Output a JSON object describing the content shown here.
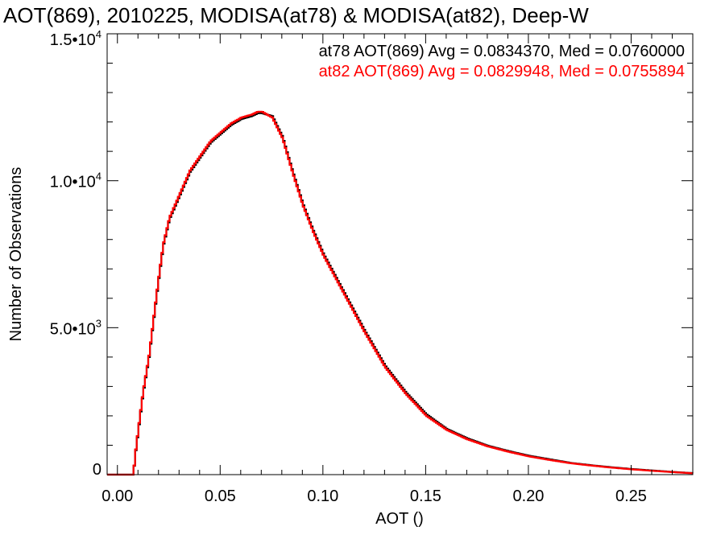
{
  "chart_data": {
    "type": "line",
    "title": "AOT(869), 2010225, MODISA(at78) & MODISA(at82), Deep-W",
    "xlabel": "AOT ()",
    "ylabel": "Number of Observations",
    "xlim": [
      -0.005,
      0.28
    ],
    "ylim": [
      0,
      15000
    ],
    "x_ticks": [
      0.0,
      0.05,
      0.1,
      0.15,
      0.2,
      0.25
    ],
    "x_tick_labels": [
      "0.00",
      "0.05",
      "0.10",
      "0.15",
      "0.20",
      "0.25"
    ],
    "y_ticks": [
      0,
      5000,
      10000,
      15000
    ],
    "y_tick_labels": [
      {
        "mant": "0",
        "exp": ""
      },
      {
        "mant": "5.0•10",
        "exp": "3"
      },
      {
        "mant": "1.0•10",
        "exp": "4"
      },
      {
        "mant": "1.5•10",
        "exp": "4"
      }
    ],
    "grid": false,
    "legend_placement": "top-right",
    "series": [
      {
        "name": "at78",
        "label": "at78 AOT(869) Avg = 0.0834370, Med = 0.0760000",
        "color": "#000000",
        "x": [
          -0.005,
          0.0075,
          0.008,
          0.01,
          0.012,
          0.015,
          0.018,
          0.02,
          0.022,
          0.025,
          0.03,
          0.035,
          0.04,
          0.045,
          0.05,
          0.055,
          0.06,
          0.065,
          0.068,
          0.07,
          0.075,
          0.08,
          0.085,
          0.09,
          0.095,
          0.1,
          0.11,
          0.12,
          0.13,
          0.14,
          0.15,
          0.16,
          0.17,
          0.18,
          0.19,
          0.2,
          0.21,
          0.22,
          0.23,
          0.24,
          0.25,
          0.26,
          0.27,
          0.28
        ],
        "y": [
          0,
          0,
          500,
          1600,
          2700,
          4000,
          5700,
          6800,
          7800,
          8700,
          9500,
          10300,
          10800,
          11300,
          11600,
          11900,
          12100,
          12200,
          12300,
          12300,
          12200,
          11500,
          10300,
          9200,
          8300,
          7500,
          6200,
          4900,
          3700,
          2800,
          2050,
          1550,
          1230,
          980,
          800,
          640,
          520,
          400,
          320,
          250,
          190,
          140,
          90,
          50
        ]
      },
      {
        "name": "at82",
        "label": "at82 AOT(869) Avg = 0.0829948, Med = 0.0755894",
        "color": "#ff0000",
        "x": [
          -0.005,
          0.0075,
          0.008,
          0.01,
          0.012,
          0.015,
          0.018,
          0.02,
          0.022,
          0.025,
          0.03,
          0.035,
          0.04,
          0.045,
          0.05,
          0.055,
          0.06,
          0.065,
          0.068,
          0.07,
          0.075,
          0.08,
          0.085,
          0.09,
          0.095,
          0.1,
          0.11,
          0.12,
          0.13,
          0.14,
          0.15,
          0.16,
          0.17,
          0.18,
          0.19,
          0.2,
          0.21,
          0.22,
          0.23,
          0.24,
          0.25,
          0.26,
          0.27,
          0.28
        ],
        "y": [
          0,
          0,
          520,
          1650,
          2750,
          4050,
          5750,
          6850,
          7850,
          8750,
          9550,
          10350,
          10850,
          11350,
          11650,
          11950,
          12150,
          12250,
          12350,
          12350,
          12150,
          11450,
          10250,
          9150,
          8250,
          7450,
          6150,
          4850,
          3650,
          2750,
          2000,
          1520,
          1200,
          960,
          780,
          620,
          500,
          390,
          310,
          240,
          180,
          130,
          85,
          45
        ]
      }
    ]
  }
}
